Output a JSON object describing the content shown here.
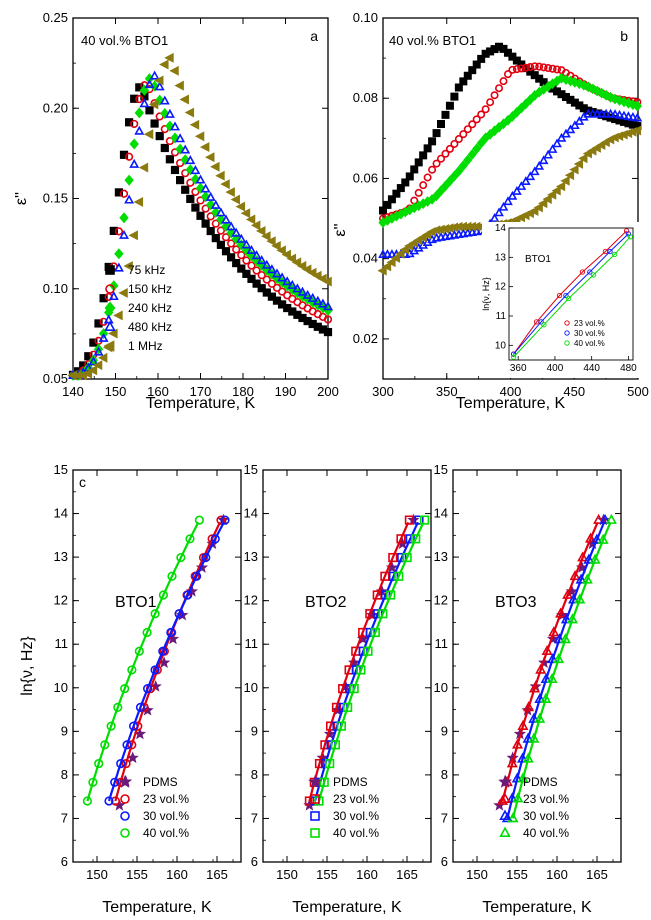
{
  "chart_data": [
    {
      "id": "a",
      "type": "scatter",
      "panel_label": "a",
      "annotation": "40 vol.% BTO1",
      "xlabel": "Temperature, K",
      "ylabel": "ε''",
      "xlim": [
        140,
        200
      ],
      "ylim": [
        0.05,
        0.25
      ],
      "xticks": [
        "140",
        "150",
        "160",
        "170",
        "180",
        "190",
        "200"
      ],
      "yticks": [
        "0.05",
        "0.10",
        "0.15",
        "0.20",
        "0.25"
      ],
      "legend": "lower-left",
      "series": [
        {
          "name": "75 kHz",
          "color": "#000000",
          "marker": "square",
          "filled": true,
          "peak_x": 156,
          "peak_y": 0.212,
          "width_left": 8.5,
          "tail_y": 0.076
        },
        {
          "name": "150 kHz",
          "color": "#e0000f",
          "marker": "circle",
          "filled": false,
          "peak_x": 157.5,
          "peak_y": 0.214,
          "width_left": 8.8,
          "tail_y": 0.083
        },
        {
          "name": "240 kHz",
          "color": "#00dd00",
          "marker": "diamond",
          "filled": true,
          "peak_x": 158.5,
          "peak_y": 0.217,
          "width_left": 9.0,
          "tail_y": 0.088
        },
        {
          "name": "480 kHz",
          "color": "#0a1aff",
          "marker": "triangle-up",
          "filled": false,
          "peak_x": 159.5,
          "peak_y": 0.218,
          "width_left": 9.5,
          "tail_y": 0.09
        },
        {
          "name": "1 MHz",
          "color": "#8b7a0f",
          "marker": "triangle-left",
          "filled": true,
          "peak_x": 163,
          "peak_y": 0.228,
          "width_left": 10.5,
          "tail_y": 0.104
        }
      ]
    },
    {
      "id": "b",
      "type": "scatter",
      "panel_label": "b",
      "annotation": "40 vol.% BTO1",
      "xlabel": "Temperature, K",
      "ylabel": "ε''",
      "xlim": [
        300,
        500
      ],
      "ylim": [
        0.01,
        0.1
      ],
      "xticks": [
        "300",
        "350",
        "400",
        "450",
        "500"
      ],
      "yticks": [
        "0.02",
        "0.04",
        "0.06",
        "0.08",
        "0.10"
      ],
      "series": [
        {
          "name": "75 kHz",
          "color": "#000000",
          "marker": "square",
          "filled": true,
          "points": [
            [
              300,
              0.052
            ],
            [
              320,
              0.06
            ],
            [
              340,
              0.07
            ],
            [
              360,
              0.083
            ],
            [
              380,
              0.091
            ],
            [
              392,
              0.093
            ],
            [
              410,
              0.088
            ],
            [
              430,
              0.083
            ],
            [
              460,
              0.077
            ],
            [
              480,
              0.075
            ],
            [
              500,
              0.073
            ]
          ]
        },
        {
          "name": "150 kHz",
          "color": "#e0000f",
          "marker": "circle",
          "filled": false,
          "points": [
            [
              300,
              0.05
            ],
            [
              320,
              0.052
            ],
            [
              340,
              0.063
            ],
            [
              360,
              0.07
            ],
            [
              380,
              0.077
            ],
            [
              400,
              0.087
            ],
            [
              420,
              0.088
            ],
            [
              440,
              0.087
            ],
            [
              460,
              0.083
            ],
            [
              480,
              0.08
            ],
            [
              500,
              0.079
            ]
          ]
        },
        {
          "name": "240 kHz",
          "color": "#00dd00",
          "marker": "diamond",
          "filled": true,
          "points": [
            [
              300,
              0.049
            ],
            [
              320,
              0.052
            ],
            [
              340,
              0.055
            ],
            [
              360,
              0.062
            ],
            [
              380,
              0.07
            ],
            [
              400,
              0.075
            ],
            [
              420,
              0.081
            ],
            [
              440,
              0.085
            ],
            [
              460,
              0.083
            ],
            [
              480,
              0.08
            ],
            [
              500,
              0.078
            ]
          ]
        },
        {
          "name": "480 kHz",
          "color": "#0a1aff",
          "marker": "triangle-up",
          "filled": false,
          "points": [
            [
              300,
              0.041
            ],
            [
              320,
              0.041
            ],
            [
              340,
              0.045
            ],
            [
              360,
              0.046
            ],
            [
              380,
              0.047
            ],
            [
              400,
              0.055
            ],
            [
              420,
              0.062
            ],
            [
              440,
              0.07
            ],
            [
              460,
              0.076
            ],
            [
              480,
              0.076
            ],
            [
              500,
              0.075
            ]
          ]
        },
        {
          "name": "1 MHz",
          "color": "#8b7a0f",
          "marker": "triangle-left",
          "filled": true,
          "points": [
            [
              300,
              0.037
            ],
            [
              320,
              0.043
            ],
            [
              340,
              0.047
            ],
            [
              360,
              0.048
            ],
            [
              380,
              0.048
            ],
            [
              400,
              0.049
            ],
            [
              420,
              0.052
            ],
            [
              440,
              0.058
            ],
            [
              460,
              0.066
            ],
            [
              480,
              0.07
            ],
            [
              500,
              0.072
            ]
          ]
        }
      ],
      "inset": {
        "title": "BTO1",
        "ylabel": "ln{ν, Hz}",
        "xlim": [
          350,
          485
        ],
        "ylim": [
          9.5,
          14
        ],
        "xticks": [
          "360",
          "400",
          "440",
          "480"
        ],
        "yticks": [
          "10",
          "11",
          "12",
          "13",
          "14"
        ],
        "series": [
          {
            "name": "23 vol.%",
            "color": "#e0000f",
            "points": [
              [
                355,
                9.7
              ],
              [
                380,
                10.8
              ],
              [
                405,
                11.7
              ],
              [
                430,
                12.5
              ],
              [
                455,
                13.2
              ],
              [
                478,
                13.9
              ]
            ]
          },
          {
            "name": "30 vol.%",
            "color": "#0a1aff",
            "points": [
              [
                355,
                9.7
              ],
              [
                385,
                10.8
              ],
              [
                412,
                11.7
              ],
              [
                438,
                12.5
              ],
              [
                460,
                13.2
              ],
              [
                480,
                13.8
              ]
            ]
          },
          {
            "name": "40 vol.%",
            "color": "#00dd00",
            "points": [
              [
                355,
                9.6
              ],
              [
                388,
                10.7
              ],
              [
                415,
                11.6
              ],
              [
                442,
                12.4
              ],
              [
                465,
                13.1
              ],
              [
                482,
                13.7
              ]
            ]
          }
        ]
      }
    },
    {
      "id": "c1",
      "type": "scatter",
      "panel_label": "c",
      "title": "BTO1",
      "xlabel": "Temperature, K",
      "ylabel": "ln{ν, Hz}",
      "xlim": [
        147,
        168
      ],
      "ylim": [
        6,
        15
      ],
      "xticks": [
        "150",
        "155",
        "160",
        "165"
      ],
      "yticks": [
        "6",
        "7",
        "8",
        "9",
        "10",
        "11",
        "12",
        "13",
        "14",
        "15"
      ],
      "series": [
        {
          "name": "PDMS",
          "color": "#6b1a7a",
          "marker": "star",
          "x0": 152.8,
          "x1": 165.8
        },
        {
          "name": "23 vol.%",
          "color": "#e0000f",
          "marker": "circle",
          "x0": 152.3,
          "x1": 165.5
        },
        {
          "name": "30 vol.%",
          "color": "#0a1aff",
          "marker": "circle",
          "x0": 151.5,
          "x1": 166.0
        },
        {
          "name": "40 vol.%",
          "color": "#00dd00",
          "marker": "circle",
          "x0": 148.8,
          "x1": 162.8
        }
      ]
    },
    {
      "id": "c2",
      "type": "scatter",
      "title": "BTO2",
      "xlabel": "Temperature, K",
      "xlim": [
        147,
        168
      ],
      "ylim": [
        6,
        15
      ],
      "xticks": [
        "150",
        "155",
        "160",
        "165"
      ],
      "yticks": [
        "6",
        "7",
        "8",
        "9",
        "10",
        "11",
        "12",
        "13",
        "14",
        "15"
      ],
      "series": [
        {
          "name": "PDMS",
          "color": "#6b1a7a",
          "marker": "star",
          "x0": 152.8,
          "x1": 165.8
        },
        {
          "name": "23 vol.%",
          "color": "#e0000f",
          "marker": "square",
          "x0": 152.8,
          "x1": 165.3
        },
        {
          "name": "30 vol.%",
          "color": "#0a1aff",
          "marker": "square",
          "x0": 153.5,
          "x1": 166.5
        },
        {
          "name": "40 vol.%",
          "color": "#00dd00",
          "marker": "square",
          "x0": 154.0,
          "x1": 167.2
        }
      ]
    },
    {
      "id": "c3",
      "type": "scatter",
      "title": "BTO3",
      "xlabel": "Temperature, K",
      "xlim": [
        147,
        168
      ],
      "ylim": [
        6,
        15
      ],
      "xticks": [
        "150",
        "155",
        "160",
        "165"
      ],
      "yticks": [
        "6",
        "7",
        "8",
        "9",
        "10",
        "11",
        "12",
        "13",
        "14",
        "15"
      ],
      "series": [
        {
          "name": "PDMS",
          "color": "#6b1a7a",
          "marker": "star",
          "x0": 152.8,
          "x1": 165.8
        },
        {
          "name": "23 vol.%",
          "color": "#e0000f",
          "marker": "triangle-up",
          "x0": 153.2,
          "x1": 165.2
        },
        {
          "name": "30 vol.%",
          "color": "#0a1aff",
          "marker": "triangle-up",
          "x0": 153.8,
          "x1": 166.0
        },
        {
          "name": "40 vol.%",
          "color": "#00dd00",
          "marker": "triangle-up",
          "x0": 154.5,
          "x1": 166.8
        }
      ]
    }
  ]
}
